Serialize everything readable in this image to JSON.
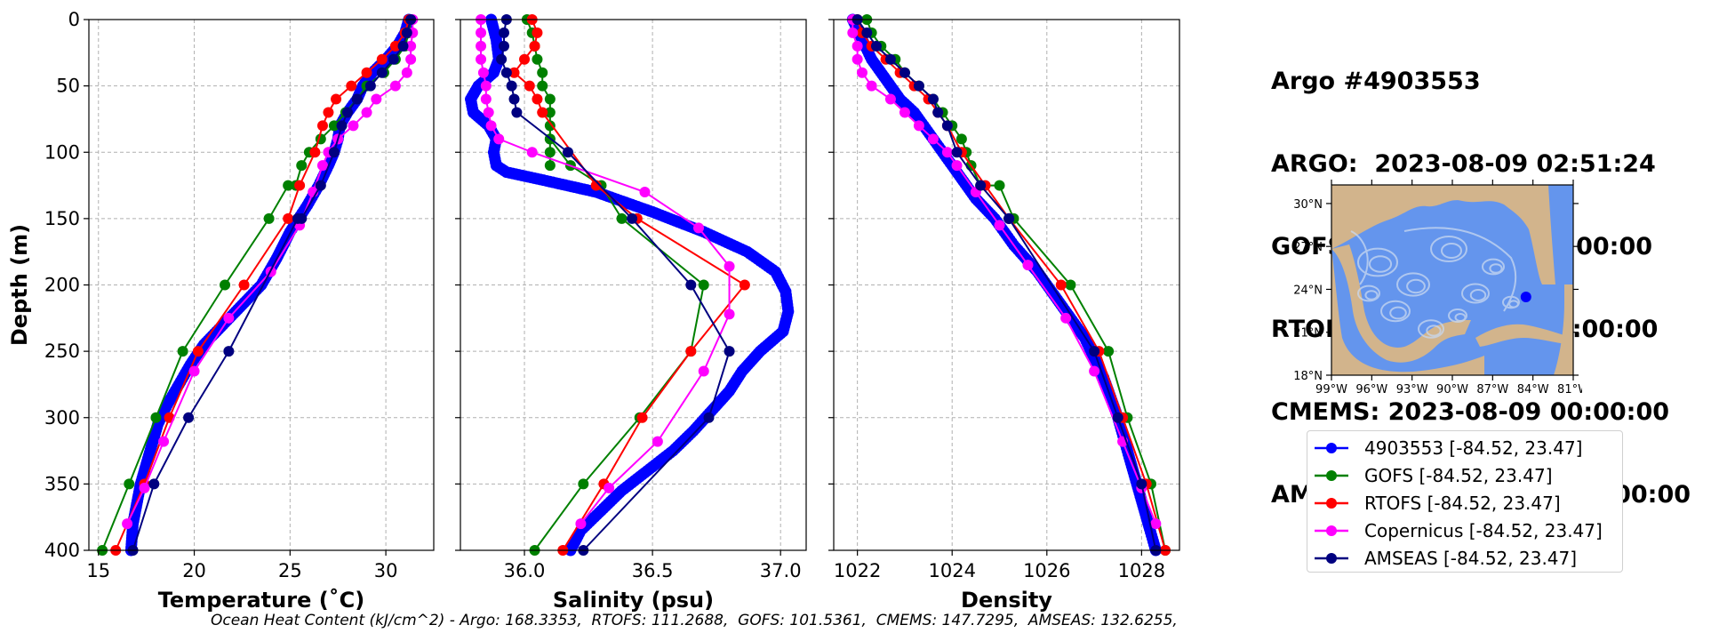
{
  "title_lines": [
    "Argo #4903553",
    "ARGO:  2023-08-09 02:51:24",
    "GOFS : 2023-08-09 03:00:00",
    "RTOFS: 2023-08-09 00:00:00",
    "CMEMS: 2023-08-09 00:00:00",
    "AMSEAS : 2023-08-09 03:00:00"
  ],
  "footer": "Ocean Heat Content (kJ/cm^2) - Argo: 168.3353,  RTOFS: 111.2688,  GOFS: 101.5361,  CMEMS: 147.7295,  AMSEAS: 132.6255,",
  "legend": [
    {
      "label": "4903553 [-84.52, 23.47]",
      "color": "#0000ff"
    },
    {
      "label": "GOFS [-84.52, 23.47]",
      "color": "#008000"
    },
    {
      "label": "RTOFS [-84.52, 23.47]",
      "color": "#ff0000"
    },
    {
      "label": "Copernicus [-84.52, 23.47]",
      "color": "#ff00ff"
    },
    {
      "label": "AMSEAS [-84.52, 23.47]",
      "color": "#000080"
    }
  ],
  "inset_map": {
    "lat_ticks": [
      "30°N",
      "27°N",
      "24°N",
      "21°N",
      "18°N"
    ],
    "lon_ticks": [
      "99°W",
      "96°W",
      "93°W",
      "90°W",
      "87°W",
      "84°W",
      "81°W"
    ],
    "float_lon": -84.52,
    "float_lat": 23.47,
    "land_color": "#d2b48c",
    "ocean_color": "#6495ed"
  },
  "chart_data": [
    {
      "type": "line",
      "xlabel": "Temperature (˚C)",
      "ylabel": "Depth (m)",
      "xlim": [
        14.5,
        32.5
      ],
      "ylim": [
        400,
        0
      ],
      "xticks": [
        15,
        20,
        25,
        30
      ],
      "yticks": [
        0,
        50,
        100,
        150,
        200,
        250,
        300,
        350,
        400
      ],
      "grid": true,
      "series": [
        {
          "name": "4903553 [-84.52, 23.47]",
          "color": "#0000ff",
          "marker_size": 6.5,
          "width": 2.5,
          "dense": true,
          "x": [
            31.2,
            31.0,
            30.6,
            30.0,
            29.3,
            28.8,
            28.5,
            28.0,
            27.6,
            27.5,
            27.3,
            27.0,
            26.5,
            25.9,
            25.0,
            24.3,
            23.5,
            22.5,
            21.5,
            20.5,
            19.8,
            19.2,
            18.6,
            18.1,
            17.8,
            17.5,
            17.2,
            17.0,
            16.8,
            16.7
          ],
          "y": [
            0,
            10,
            20,
            30,
            40,
            50,
            60,
            70,
            80,
            90,
            100,
            110,
            125,
            140,
            160,
            180,
            200,
            215,
            230,
            245,
            260,
            275,
            290,
            305,
            320,
            335,
            350,
            365,
            380,
            400
          ]
        },
        {
          "name": "GOFS [-84.52, 23.47]",
          "color": "#008000",
          "marker_size": 6,
          "width": 2,
          "x": [
            31.3,
            31.2,
            31.0,
            30.5,
            29.9,
            29.0,
            28.5,
            27.9,
            27.3,
            26.6,
            26.0,
            25.6,
            25.3,
            24.9,
            23.9,
            21.6,
            19.4,
            18.0,
            16.6,
            15.2
          ],
          "y": [
            0,
            10,
            20,
            30,
            40,
            50,
            60,
            70,
            80,
            90,
            100,
            110,
            125,
            125,
            150,
            200,
            250,
            300,
            350,
            400
          ]
        },
        {
          "name": "RTOFS [-84.52, 23.47]",
          "color": "#ff0000",
          "marker_size": 6,
          "width": 2,
          "x": [
            31.2,
            31.0,
            30.5,
            29.8,
            29.0,
            28.2,
            27.4,
            27.0,
            26.7,
            26.3,
            25.5,
            24.9,
            22.6,
            20.2,
            18.7,
            17.4,
            15.9
          ],
          "y": [
            0,
            10,
            20,
            30,
            40,
            50,
            60,
            70,
            80,
            100,
            125,
            150,
            200,
            250,
            300,
            350,
            400
          ]
        },
        {
          "name": "Copernicus [-84.52, 23.47]",
          "color": "#ff00ff",
          "marker_size": 6,
          "width": 2,
          "x": [
            31.4,
            31.4,
            31.3,
            31.3,
            31.1,
            30.5,
            29.5,
            29.0,
            28.3,
            27.5,
            27.0,
            26.7,
            26.2,
            25.5,
            24.0,
            21.8,
            20.0,
            18.4,
            17.4,
            16.5
          ],
          "y": [
            0,
            10,
            20,
            30,
            40,
            50,
            60,
            70,
            80,
            90,
            100,
            110,
            130,
            155,
            190,
            225,
            265,
            318,
            353,
            380
          ]
        },
        {
          "name": "AMSEAS [-84.52, 23.47]",
          "color": "#000080",
          "marker_size": 6,
          "width": 2,
          "x": [
            31.3,
            31.1,
            30.9,
            30.4,
            29.8,
            29.2,
            28.5,
            28.0,
            27.7,
            27.3,
            26.6,
            25.6,
            25.4,
            21.8,
            19.7,
            17.9,
            16.8
          ],
          "y": [
            0,
            10,
            20,
            30,
            40,
            50,
            60,
            70,
            80,
            100,
            125,
            150,
            150,
            250,
            300,
            350,
            400
          ]
        }
      ]
    },
    {
      "type": "line",
      "xlabel": "Salinity (psu)",
      "ylabel": "",
      "xlim": [
        35.75,
        37.1
      ],
      "ylim": [
        400,
        0
      ],
      "xticks": [
        36.0,
        36.5,
        37.0
      ],
      "xtick_labels": [
        "36.0",
        "36.5",
        "37.0"
      ],
      "yticks": [
        0,
        50,
        100,
        150,
        200,
        250,
        300,
        350,
        400
      ],
      "grid": true,
      "series": [
        {
          "name": "4903553 [-84.52, 23.47]",
          "color": "#0000ff",
          "marker_size": 6.5,
          "width": 2.5,
          "dense": true,
          "x": [
            35.87,
            35.89,
            35.9,
            35.88,
            35.82,
            35.79,
            35.8,
            35.86,
            35.89,
            35.88,
            35.89,
            35.93,
            36.05,
            36.28,
            36.5,
            36.7,
            36.87,
            36.98,
            37.02,
            37.03,
            37.01,
            36.92,
            36.85,
            36.8,
            36.73,
            36.66,
            36.58,
            36.48,
            36.38,
            36.3,
            36.22,
            36.18
          ],
          "y": [
            0,
            15,
            30,
            40,
            50,
            60,
            70,
            80,
            90,
            100,
            110,
            115,
            120,
            130,
            145,
            160,
            175,
            190,
            205,
            220,
            235,
            250,
            265,
            280,
            295,
            310,
            325,
            340,
            355,
            370,
            385,
            400
          ]
        },
        {
          "name": "GOFS [-84.52, 23.47]",
          "color": "#008000",
          "marker_size": 6,
          "width": 2,
          "x": [
            36.01,
            36.03,
            36.04,
            36.05,
            36.07,
            36.07,
            36.1,
            36.1,
            36.1,
            36.1,
            36.1,
            36.1,
            36.1,
            36.18,
            36.3,
            36.38,
            36.7,
            36.65,
            36.45,
            36.23,
            36.04
          ],
          "y": [
            0,
            10,
            20,
            30,
            40,
            50,
            60,
            70,
            80,
            90,
            100,
            110,
            90,
            110,
            125,
            150,
            200,
            250,
            300,
            350,
            400
          ]
        },
        {
          "name": "RTOFS [-84.52, 23.47]",
          "color": "#ff0000",
          "marker_size": 6,
          "width": 2,
          "x": [
            36.03,
            36.05,
            36.04,
            36.0,
            35.96,
            36.02,
            36.05,
            36.07,
            36.28,
            36.44,
            36.86,
            36.65,
            36.46,
            36.31,
            36.15
          ],
          "y": [
            0,
            10,
            20,
            30,
            40,
            50,
            60,
            70,
            125,
            150,
            200,
            250,
            300,
            350,
            400
          ]
        },
        {
          "name": "Copernicus [-84.52, 23.47]",
          "color": "#ff00ff",
          "marker_size": 6,
          "width": 2,
          "x": [
            35.83,
            35.83,
            35.83,
            35.83,
            35.84,
            35.85,
            35.85,
            35.86,
            35.87,
            35.9,
            36.03,
            36.47,
            36.68,
            36.8,
            36.8,
            36.7,
            36.52,
            36.33,
            36.22
          ],
          "y": [
            0,
            10,
            20,
            30,
            40,
            50,
            60,
            70,
            80,
            90,
            100,
            130,
            157,
            186,
            222,
            265,
            318,
            353,
            380
          ]
        },
        {
          "name": "AMSEAS [-84.52, 23.47]",
          "color": "#000080",
          "marker_size": 6,
          "width": 2,
          "x": [
            35.93,
            35.92,
            35.92,
            35.91,
            35.93,
            35.95,
            35.96,
            35.97,
            36.17,
            36.42,
            36.65,
            36.8,
            36.72,
            36.23
          ],
          "y": [
            0,
            10,
            20,
            30,
            40,
            50,
            60,
            70,
            100,
            150,
            200,
            250,
            300,
            400
          ]
        }
      ]
    },
    {
      "type": "line",
      "xlabel": "Density",
      "ylabel": "",
      "xlim": [
        1021.5,
        1028.8
      ],
      "ylim": [
        400,
        0
      ],
      "xticks": [
        1022,
        1024,
        1026,
        1028
      ],
      "yticks": [
        0,
        50,
        100,
        150,
        200,
        250,
        300,
        350,
        400
      ],
      "grid": true,
      "series": [
        {
          "name": "4903553 [-84.52, 23.47]",
          "color": "#0000ff",
          "marker_size": 6.5,
          "width": 2.5,
          "dense": true,
          "x": [
            1021.9,
            1022.1,
            1022.3,
            1022.6,
            1022.9,
            1023.2,
            1023.4,
            1023.6,
            1023.8,
            1024.0,
            1024.2,
            1024.5,
            1024.9,
            1025.3,
            1025.8,
            1026.3,
            1026.8,
            1027.2,
            1027.5,
            1027.7,
            1027.9,
            1028.1,
            1028.3
          ],
          "y": [
            0,
            15,
            30,
            45,
            60,
            70,
            80,
            90,
            100,
            110,
            120,
            135,
            150,
            170,
            190,
            215,
            240,
            270,
            300,
            325,
            350,
            375,
            400
          ]
        },
        {
          "name": "GOFS [-84.52, 23.47]",
          "color": "#008000",
          "marker_size": 6,
          "width": 2,
          "x": [
            1022.2,
            1022.3,
            1022.5,
            1022.8,
            1023.0,
            1023.3,
            1023.6,
            1023.8,
            1024.0,
            1024.2,
            1024.3,
            1024.4,
            1024.6,
            1025.0,
            1025.3,
            1026.5,
            1027.3,
            1027.7,
            1028.2,
            1028.5
          ],
          "y": [
            0,
            10,
            20,
            30,
            40,
            50,
            60,
            70,
            80,
            90,
            100,
            110,
            125,
            125,
            150,
            200,
            250,
            300,
            350,
            400
          ]
        },
        {
          "name": "RTOFS [-84.52, 23.47]",
          "color": "#ff0000",
          "marker_size": 6,
          "width": 2,
          "x": [
            1022.0,
            1022.1,
            1022.3,
            1022.6,
            1022.9,
            1023.2,
            1023.5,
            1023.7,
            1023.9,
            1024.2,
            1024.7,
            1025.2,
            1026.3,
            1027.1,
            1027.6,
            1028.1,
            1028.5
          ],
          "y": [
            0,
            10,
            20,
            30,
            40,
            50,
            60,
            70,
            80,
            100,
            125,
            150,
            200,
            250,
            300,
            350,
            400
          ]
        },
        {
          "name": "Copernicus [-84.52, 23.47]",
          "color": "#ff00ff",
          "marker_size": 6,
          "width": 2,
          "x": [
            1021.9,
            1021.9,
            1022.0,
            1022.0,
            1022.1,
            1022.3,
            1022.7,
            1023.0,
            1023.3,
            1023.6,
            1023.9,
            1024.1,
            1024.5,
            1025.0,
            1025.6,
            1026.4,
            1027.0,
            1027.6,
            1028.0,
            1028.3
          ],
          "y": [
            0,
            10,
            20,
            30,
            40,
            50,
            60,
            70,
            80,
            90,
            100,
            110,
            130,
            155,
            185,
            225,
            265,
            318,
            353,
            380
          ]
        },
        {
          "name": "AMSEAS [-84.52, 23.47]",
          "color": "#000080",
          "marker_size": 6,
          "width": 2,
          "x": [
            1022.0,
            1022.2,
            1022.4,
            1022.7,
            1023.0,
            1023.3,
            1023.6,
            1023.7,
            1023.9,
            1024.1,
            1024.6,
            1025.2,
            1025.2,
            1027.0,
            1027.5,
            1028.0,
            1028.3
          ],
          "y": [
            0,
            10,
            20,
            30,
            40,
            50,
            60,
            70,
            80,
            100,
            125,
            150,
            150,
            250,
            300,
            350,
            400
          ]
        }
      ]
    }
  ]
}
